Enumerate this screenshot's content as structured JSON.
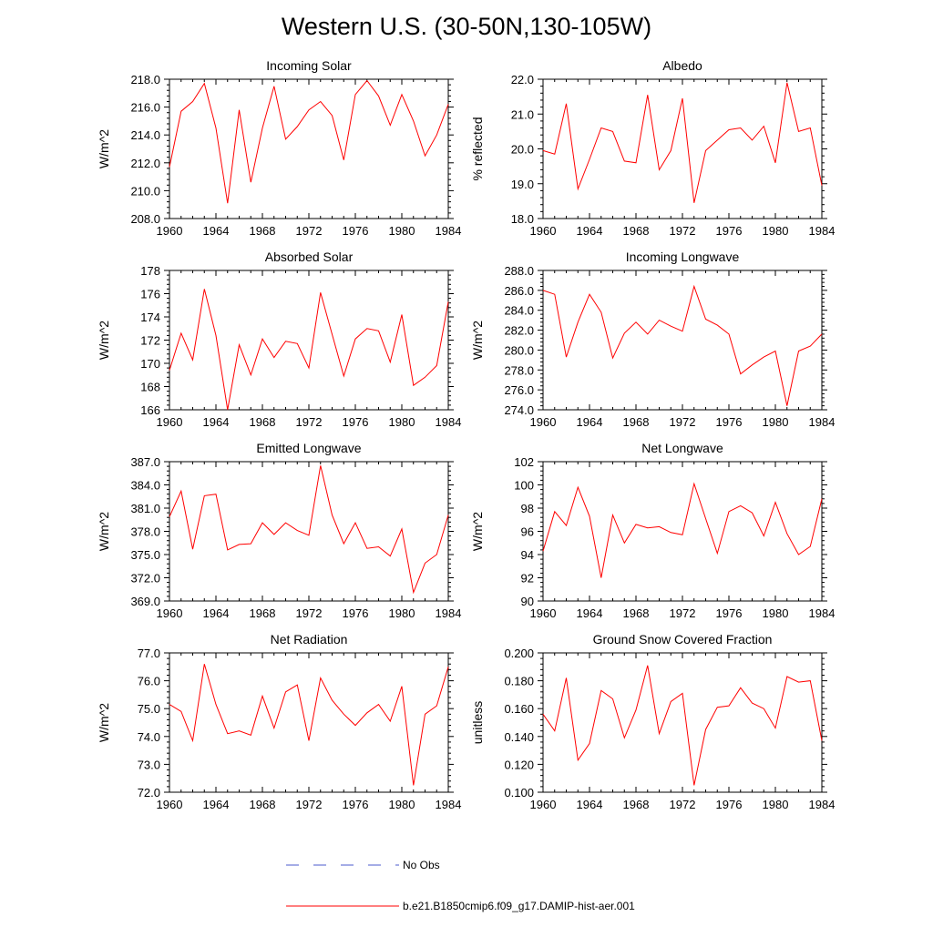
{
  "title": "Western U.S. (30-50N,130-105W)",
  "legend": {
    "entries": [
      {
        "label": "No Obs",
        "color": "#4b5bcc",
        "style": "dashed"
      },
      {
        "label": "b.e21.B1850cmip6.f09_g17.DAMIP-hist-aer.001",
        "color": "#ff0000",
        "style": "solid"
      }
    ]
  },
  "chart_data": [
    {
      "type": "line",
      "title": "Incoming Solar",
      "ylabel": "W/m^2",
      "xlim": [
        1960,
        1984
      ],
      "ylim": [
        208,
        218
      ],
      "xticks": [
        "1960",
        "1964",
        "1968",
        "1972",
        "1976",
        "1980",
        "1984"
      ],
      "yticks": [
        "208.0",
        "210.0",
        "212.0",
        "214.0",
        "216.0",
        "218.0"
      ],
      "x": [
        1960,
        1961,
        1962,
        1963,
        1964,
        1965,
        1966,
        1967,
        1968,
        1969,
        1970,
        1971,
        1972,
        1973,
        1974,
        1975,
        1976,
        1977,
        1978,
        1979,
        1980,
        1981,
        1982,
        1983,
        1984
      ],
      "series": [
        {
          "color": "#ff0000",
          "values": [
            211.7,
            215.7,
            216.4,
            217.7,
            214.5,
            209.1,
            215.8,
            210.6,
            214.5,
            217.5,
            213.7,
            214.6,
            215.8,
            216.4,
            215.4,
            212.2,
            216.9,
            217.9,
            216.8,
            214.7,
            216.9,
            215.0,
            212.5,
            214.0,
            216.2
          ]
        }
      ]
    },
    {
      "type": "line",
      "title": "Albedo",
      "ylabel": "% reflected",
      "xlim": [
        1960,
        1984
      ],
      "ylim": [
        18,
        22
      ],
      "xticks": [
        "1960",
        "1964",
        "1968",
        "1972",
        "1976",
        "1980",
        "1984"
      ],
      "yticks": [
        "18.0",
        "19.0",
        "20.0",
        "21.0",
        "22.0"
      ],
      "x": [
        1960,
        1961,
        1962,
        1963,
        1964,
        1965,
        1966,
        1967,
        1968,
        1969,
        1970,
        1971,
        1972,
        1973,
        1974,
        1975,
        1976,
        1977,
        1978,
        1979,
        1980,
        1981,
        1982,
        1983,
        1984
      ],
      "series": [
        {
          "color": "#ff0000",
          "values": [
            19.95,
            19.85,
            21.3,
            18.85,
            19.7,
            20.6,
            20.5,
            19.65,
            19.6,
            21.55,
            19.4,
            19.95,
            21.45,
            18.45,
            19.95,
            20.25,
            20.55,
            20.6,
            20.25,
            20.65,
            19.6,
            21.9,
            20.5,
            20.6,
            18.95
          ]
        }
      ]
    },
    {
      "type": "line",
      "title": "Absorbed Solar",
      "ylabel": "W/m^2",
      "xlim": [
        1960,
        1984
      ],
      "ylim": [
        166,
        178
      ],
      "xticks": [
        "1960",
        "1964",
        "1968",
        "1972",
        "1976",
        "1980",
        "1984"
      ],
      "yticks": [
        "166",
        "168",
        "170",
        "172",
        "174",
        "176",
        "178"
      ],
      "x": [
        1960,
        1961,
        1962,
        1963,
        1964,
        1965,
        1966,
        1967,
        1968,
        1969,
        1970,
        1971,
        1972,
        1973,
        1974,
        1975,
        1976,
        1977,
        1978,
        1979,
        1980,
        1981,
        1982,
        1983,
        1984
      ],
      "series": [
        {
          "color": "#ff0000",
          "values": [
            169.4,
            172.6,
            170.3,
            176.4,
            172.4,
            166.0,
            171.6,
            169.0,
            172.1,
            170.5,
            171.9,
            171.7,
            169.6,
            176.1,
            172.5,
            168.9,
            172.1,
            173.0,
            172.8,
            170.1,
            174.2,
            168.1,
            168.8,
            169.8,
            175.3
          ]
        }
      ]
    },
    {
      "type": "line",
      "title": "Incoming Longwave",
      "ylabel": "W/m^2",
      "xlim": [
        1960,
        1984
      ],
      "ylim": [
        274,
        288
      ],
      "xticks": [
        "1960",
        "1964",
        "1968",
        "1972",
        "1976",
        "1980",
        "1984"
      ],
      "yticks": [
        "274.0",
        "276.0",
        "278.0",
        "280.0",
        "282.0",
        "284.0",
        "286.0",
        "288.0"
      ],
      "x": [
        1960,
        1961,
        1962,
        1963,
        1964,
        1965,
        1966,
        1967,
        1968,
        1969,
        1970,
        1971,
        1972,
        1973,
        1974,
        1975,
        1976,
        1977,
        1978,
        1979,
        1980,
        1981,
        1982,
        1983,
        1984
      ],
      "series": [
        {
          "color": "#ff0000",
          "values": [
            286.0,
            285.6,
            279.3,
            282.8,
            285.6,
            283.8,
            279.2,
            281.7,
            282.8,
            281.6,
            283.0,
            282.4,
            281.9,
            286.4,
            283.1,
            282.5,
            281.6,
            277.6,
            278.5,
            279.3,
            279.9,
            274.4,
            279.9,
            280.4,
            281.6
          ]
        }
      ]
    },
    {
      "type": "line",
      "title": "Emitted Longwave",
      "ylabel": "W/m^2",
      "xlim": [
        1960,
        1984
      ],
      "ylim": [
        369,
        387
      ],
      "xticks": [
        "1960",
        "1964",
        "1968",
        "1972",
        "1976",
        "1980",
        "1984"
      ],
      "yticks": [
        "369.0",
        "372.0",
        "375.0",
        "378.0",
        "381.0",
        "384.0",
        "387.0"
      ],
      "x": [
        1960,
        1961,
        1962,
        1963,
        1964,
        1965,
        1966,
        1967,
        1968,
        1969,
        1970,
        1971,
        1972,
        1973,
        1974,
        1975,
        1976,
        1977,
        1978,
        1979,
        1980,
        1981,
        1982,
        1983,
        1984
      ],
      "series": [
        {
          "color": "#ff0000",
          "values": [
            379.9,
            383.2,
            375.7,
            382.6,
            382.8,
            375.6,
            376.3,
            376.4,
            379.1,
            377.6,
            379.1,
            378.1,
            377.5,
            386.5,
            380.1,
            376.4,
            379.1,
            375.8,
            376.0,
            374.8,
            378.3,
            370.1,
            373.9,
            375.0,
            380.1
          ]
        }
      ]
    },
    {
      "type": "line",
      "title": "Net Longwave",
      "ylabel": "W/m^2",
      "xlim": [
        1960,
        1984
      ],
      "ylim": [
        90,
        102
      ],
      "xticks": [
        "1960",
        "1964",
        "1968",
        "1972",
        "1976",
        "1980",
        "1984"
      ],
      "yticks": [
        "90",
        "92",
        "94",
        "96",
        "98",
        "100",
        "102"
      ],
      "x": [
        1960,
        1961,
        1962,
        1963,
        1964,
        1965,
        1966,
        1967,
        1968,
        1969,
        1970,
        1971,
        1972,
        1973,
        1974,
        1975,
        1976,
        1977,
        1978,
        1979,
        1980,
        1981,
        1982,
        1983,
        1984
      ],
      "series": [
        {
          "color": "#ff0000",
          "values": [
            94.3,
            97.7,
            96.5,
            99.8,
            97.3,
            92.0,
            97.4,
            95.0,
            96.6,
            96.3,
            96.4,
            95.9,
            95.7,
            100.1,
            97.1,
            94.1,
            97.7,
            98.2,
            97.6,
            95.6,
            98.5,
            95.8,
            94.0,
            94.7,
            98.8
          ]
        }
      ]
    },
    {
      "type": "line",
      "title": "Net Radiation",
      "ylabel": "W/m^2",
      "xlim": [
        1960,
        1984
      ],
      "ylim": [
        72,
        77
      ],
      "xticks": [
        "1960",
        "1964",
        "1968",
        "1972",
        "1976",
        "1980",
        "1984"
      ],
      "yticks": [
        "72.0",
        "73.0",
        "74.0",
        "75.0",
        "76.0",
        "77.0"
      ],
      "x": [
        1960,
        1961,
        1962,
        1963,
        1964,
        1965,
        1966,
        1967,
        1968,
        1969,
        1970,
        1971,
        1972,
        1973,
        1974,
        1975,
        1976,
        1977,
        1978,
        1979,
        1980,
        1981,
        1982,
        1983,
        1984
      ],
      "series": [
        {
          "color": "#ff0000",
          "values": [
            75.15,
            74.9,
            73.85,
            76.6,
            75.15,
            74.1,
            74.2,
            74.05,
            75.45,
            74.3,
            75.6,
            75.85,
            73.85,
            76.1,
            75.3,
            74.8,
            74.4,
            74.85,
            75.15,
            74.55,
            75.8,
            72.25,
            74.8,
            75.1,
            76.5
          ]
        }
      ]
    },
    {
      "type": "line",
      "title": "Ground Snow Covered Fraction",
      "ylabel": "unitless",
      "xlim": [
        1960,
        1984
      ],
      "ylim": [
        0.1,
        0.2
      ],
      "xticks": [
        "1960",
        "1964",
        "1968",
        "1972",
        "1976",
        "1980",
        "1984"
      ],
      "yticks": [
        "0.100",
        "0.120",
        "0.140",
        "0.160",
        "0.180",
        "0.200"
      ],
      "x": [
        1960,
        1961,
        1962,
        1963,
        1964,
        1965,
        1966,
        1967,
        1968,
        1969,
        1970,
        1971,
        1972,
        1973,
        1974,
        1975,
        1976,
        1977,
        1978,
        1979,
        1980,
        1981,
        1982,
        1983,
        1984
      ],
      "series": [
        {
          "color": "#ff0000",
          "values": [
            0.156,
            0.144,
            0.182,
            0.123,
            0.135,
            0.173,
            0.167,
            0.139,
            0.159,
            0.191,
            0.142,
            0.165,
            0.171,
            0.105,
            0.145,
            0.161,
            0.162,
            0.175,
            0.164,
            0.16,
            0.146,
            0.183,
            0.179,
            0.18,
            0.137
          ]
        }
      ]
    }
  ]
}
